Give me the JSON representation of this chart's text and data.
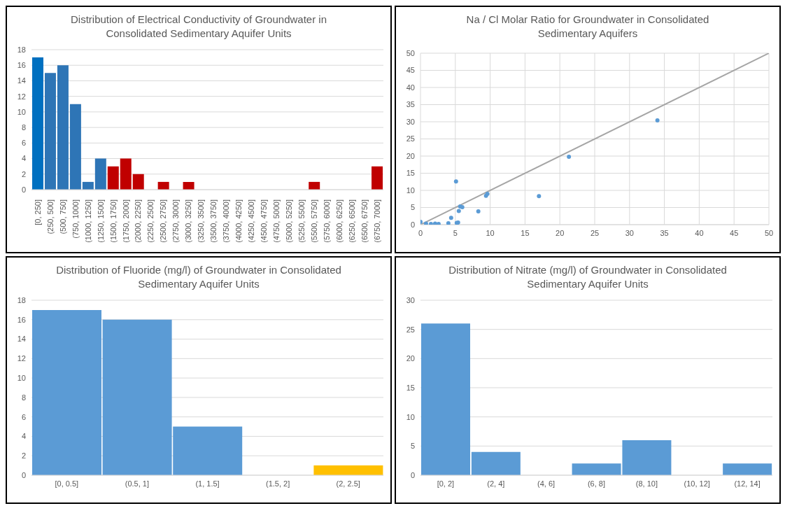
{
  "chart_data": [
    {
      "type": "bar",
      "title": "Distribution of Electrical Conductivity of Groundwater in Consolidated Sedimentary Aquifer Units",
      "categories": [
        "[0, 250]",
        "(250, 500]",
        "(500, 750]",
        "(750, 1000]",
        "(1000, 1250]",
        "(1250, 1500]",
        "(1500, 1750]",
        "(1750, 2000]",
        "(2000, 2250]",
        "(2250, 2500]",
        "(2500, 2750]",
        "(2750, 3000]",
        "(3000, 3250]",
        "(3250, 3500]",
        "(3500, 3750]",
        "(3750, 4000]",
        "(4000, 4250]",
        "(4250, 4500]",
        "(4500, 4750]",
        "(4750, 5000]",
        "(5000, 5250]",
        "(5250, 5500]",
        "(5500, 5750]",
        "(5750, 6000]",
        "(6000, 6250]",
        "(6250, 6500]",
        "(6500, 6750]",
        "(6750, 7000]"
      ],
      "values": [
        17,
        15,
        16,
        11,
        1,
        4,
        3,
        4,
        2,
        0,
        1,
        0,
        1,
        0,
        0,
        0,
        0,
        0,
        0,
        0,
        0,
        0,
        1,
        0,
        0,
        0,
        0,
        3
      ],
      "colors": [
        "#0070c0",
        "#2e75b6",
        "#2e75b6",
        "#2e75b6",
        "#2e75b6",
        "#2e75b6",
        "#c00000",
        "#c00000",
        "#c00000",
        "#c00000",
        "#c00000",
        "#c00000",
        "#c00000",
        "#c00000",
        "#c00000",
        "#c00000",
        "#c00000",
        "#c00000",
        "#c00000",
        "#c00000",
        "#c00000",
        "#c00000",
        "#c00000",
        "#c00000",
        "#c00000",
        "#c00000",
        "#c00000",
        "#c00000"
      ],
      "ylim": [
        0,
        18
      ],
      "yticks": [
        0,
        2,
        4,
        6,
        8,
        10,
        12,
        14,
        16,
        18
      ],
      "grid": "y"
    },
    {
      "type": "scatter",
      "title": "Na / Cl Molar Ratio for Groundwater in Consolidated Sedimentary Aquifers",
      "series": [
        {
          "type": "scatter",
          "color": "#5b9bd5",
          "marker": "circle",
          "x": [
            0,
            0.8,
            1.5,
            2.1,
            2.6,
            4,
            4.4,
            5.1,
            5.2,
            5.4,
            5.5,
            5.7,
            6,
            8.3,
            9.4,
            9.6,
            17,
            21.3,
            34
          ],
          "values": [
            0.8,
            0.3,
            0.2,
            0.3,
            0.2,
            0.4,
            2,
            12.6,
            0.5,
            0.6,
            4,
            5.3,
            5.1,
            3.9,
            8.4,
            9,
            8.3,
            19.8,
            30.4
          ]
        },
        {
          "type": "line",
          "color": "#a5a5a5",
          "marker": "none",
          "x": [
            0,
            50
          ],
          "values": [
            0,
            50
          ]
        }
      ],
      "xlim": [
        0,
        50
      ],
      "xticks": [
        0,
        5,
        10,
        15,
        20,
        25,
        30,
        35,
        40,
        45,
        50
      ],
      "ylim": [
        0,
        50
      ],
      "yticks": [
        0,
        5,
        10,
        15,
        20,
        25,
        30,
        35,
        40,
        45,
        50
      ],
      "grid": true
    },
    {
      "type": "bar",
      "title": "Distribution of Fluoride (mg/l) of Groundwater in Consolidated Sedimentary Aquifer Units",
      "categories": [
        "[0, 0.5]",
        "(0.5, 1]",
        "(1, 1.5]",
        "(1.5, 2]",
        "(2, 2.5]"
      ],
      "values": [
        17,
        16,
        5,
        0,
        1
      ],
      "colors": [
        "#5b9bd5",
        "#5b9bd5",
        "#5b9bd5",
        "#5b9bd5",
        "#ffc000"
      ],
      "ylim": [
        0,
        18
      ],
      "yticks": [
        0,
        2,
        4,
        6,
        8,
        10,
        12,
        14,
        16,
        18
      ],
      "grid": "y"
    },
    {
      "type": "bar",
      "title": "Distribution of Nitrate (mg/l) of Groundwater in Consolidated Sedimentary Aquifer Units",
      "categories": [
        "[0, 2]",
        "(2, 4]",
        "(4, 6]",
        "(6, 8]",
        "(8, 10]",
        "(10, 12]",
        "(12, 14]"
      ],
      "values": [
        26,
        4,
        0,
        2,
        6,
        0,
        2
      ],
      "colors": [
        "#5b9bd5",
        "#5b9bd5",
        "#5b9bd5",
        "#5b9bd5",
        "#5b9bd5",
        "#5b9bd5",
        "#5b9bd5"
      ],
      "ylim": [
        0,
        30
      ],
      "yticks": [
        0,
        5,
        10,
        15,
        20,
        25,
        30
      ],
      "grid": "y"
    }
  ]
}
